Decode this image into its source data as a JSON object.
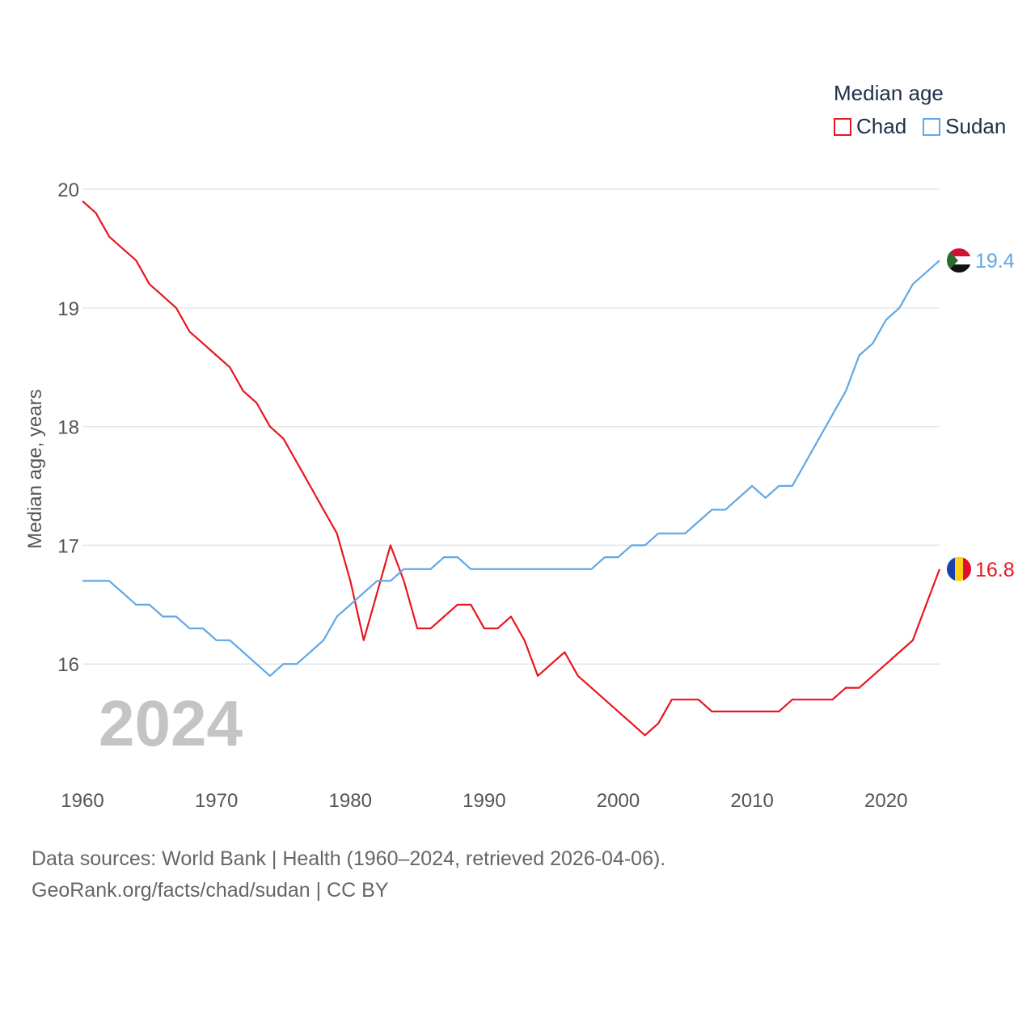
{
  "legend": {
    "title": "Median age",
    "items": [
      {
        "label": "Chad",
        "color": "#e8161f"
      },
      {
        "label": "Sudan",
        "color": "#5fa8e6"
      }
    ]
  },
  "footer": {
    "line1": "Data sources: World Bank | Health (1960–2024, retrieved 2026-04-06).",
    "line2": "GeoRank.org/facts/chad/sudan | CC BY"
  },
  "chart_data": {
    "type": "line",
    "title": "Median age",
    "xlabel": "",
    "ylabel": "Median age, years",
    "xlim": [
      1960,
      2024
    ],
    "ylim": [
      15,
      20
    ],
    "yticks": [
      16,
      17,
      18,
      19,
      20
    ],
    "xticks": [
      1960,
      1970,
      1980,
      1990,
      2000,
      2010,
      2020
    ],
    "grid": true,
    "legend_position": "top-right",
    "year_label": "2024",
    "x": [
      1960,
      1961,
      1962,
      1963,
      1964,
      1965,
      1966,
      1967,
      1968,
      1969,
      1970,
      1971,
      1972,
      1973,
      1974,
      1975,
      1976,
      1977,
      1978,
      1979,
      1980,
      1981,
      1982,
      1983,
      1984,
      1985,
      1986,
      1987,
      1988,
      1989,
      1990,
      1991,
      1992,
      1993,
      1994,
      1995,
      1996,
      1997,
      1998,
      1999,
      2000,
      2001,
      2002,
      2003,
      2004,
      2005,
      2006,
      2007,
      2008,
      2009,
      2010,
      2011,
      2012,
      2013,
      2014,
      2015,
      2016,
      2017,
      2018,
      2019,
      2020,
      2021,
      2022,
      2023,
      2024
    ],
    "series": [
      {
        "name": "Chad",
        "color": "#e8161f",
        "end_label": "16.8",
        "flag": "chad-flag-icon",
        "values": [
          19.9,
          19.8,
          19.6,
          19.5,
          19.4,
          19.2,
          19.1,
          19.0,
          18.8,
          18.7,
          18.6,
          18.5,
          18.3,
          18.2,
          18.0,
          17.9,
          17.7,
          17.5,
          17.3,
          17.1,
          16.7,
          16.2,
          16.6,
          17.0,
          16.7,
          16.3,
          16.3,
          16.4,
          16.5,
          16.5,
          16.3,
          16.3,
          16.4,
          16.2,
          15.9,
          16.0,
          16.1,
          15.9,
          15.8,
          15.7,
          15.6,
          15.5,
          15.4,
          15.5,
          15.7,
          15.7,
          15.7,
          15.6,
          15.6,
          15.6,
          15.6,
          15.6,
          15.6,
          15.7,
          15.7,
          15.7,
          15.7,
          15.8,
          15.8,
          15.9,
          16.0,
          16.1,
          16.2,
          16.5,
          16.8
        ]
      },
      {
        "name": "Sudan",
        "color": "#5fa8e6",
        "end_label": "19.4",
        "flag": "sudan-flag-icon",
        "values": [
          16.7,
          16.7,
          16.7,
          16.6,
          16.5,
          16.5,
          16.4,
          16.4,
          16.3,
          16.3,
          16.2,
          16.2,
          16.1,
          16.0,
          15.9,
          16.0,
          16.0,
          16.1,
          16.2,
          16.4,
          16.5,
          16.6,
          16.7,
          16.7,
          16.8,
          16.8,
          16.8,
          16.9,
          16.9,
          16.8,
          16.8,
          16.8,
          16.8,
          16.8,
          16.8,
          16.8,
          16.8,
          16.8,
          16.8,
          16.9,
          16.9,
          17.0,
          17.0,
          17.1,
          17.1,
          17.1,
          17.2,
          17.3,
          17.3,
          17.4,
          17.5,
          17.4,
          17.5,
          17.5,
          17.7,
          17.9,
          18.1,
          18.3,
          18.6,
          18.7,
          18.9,
          19.0,
          19.2,
          19.3,
          19.4
        ]
      }
    ]
  }
}
